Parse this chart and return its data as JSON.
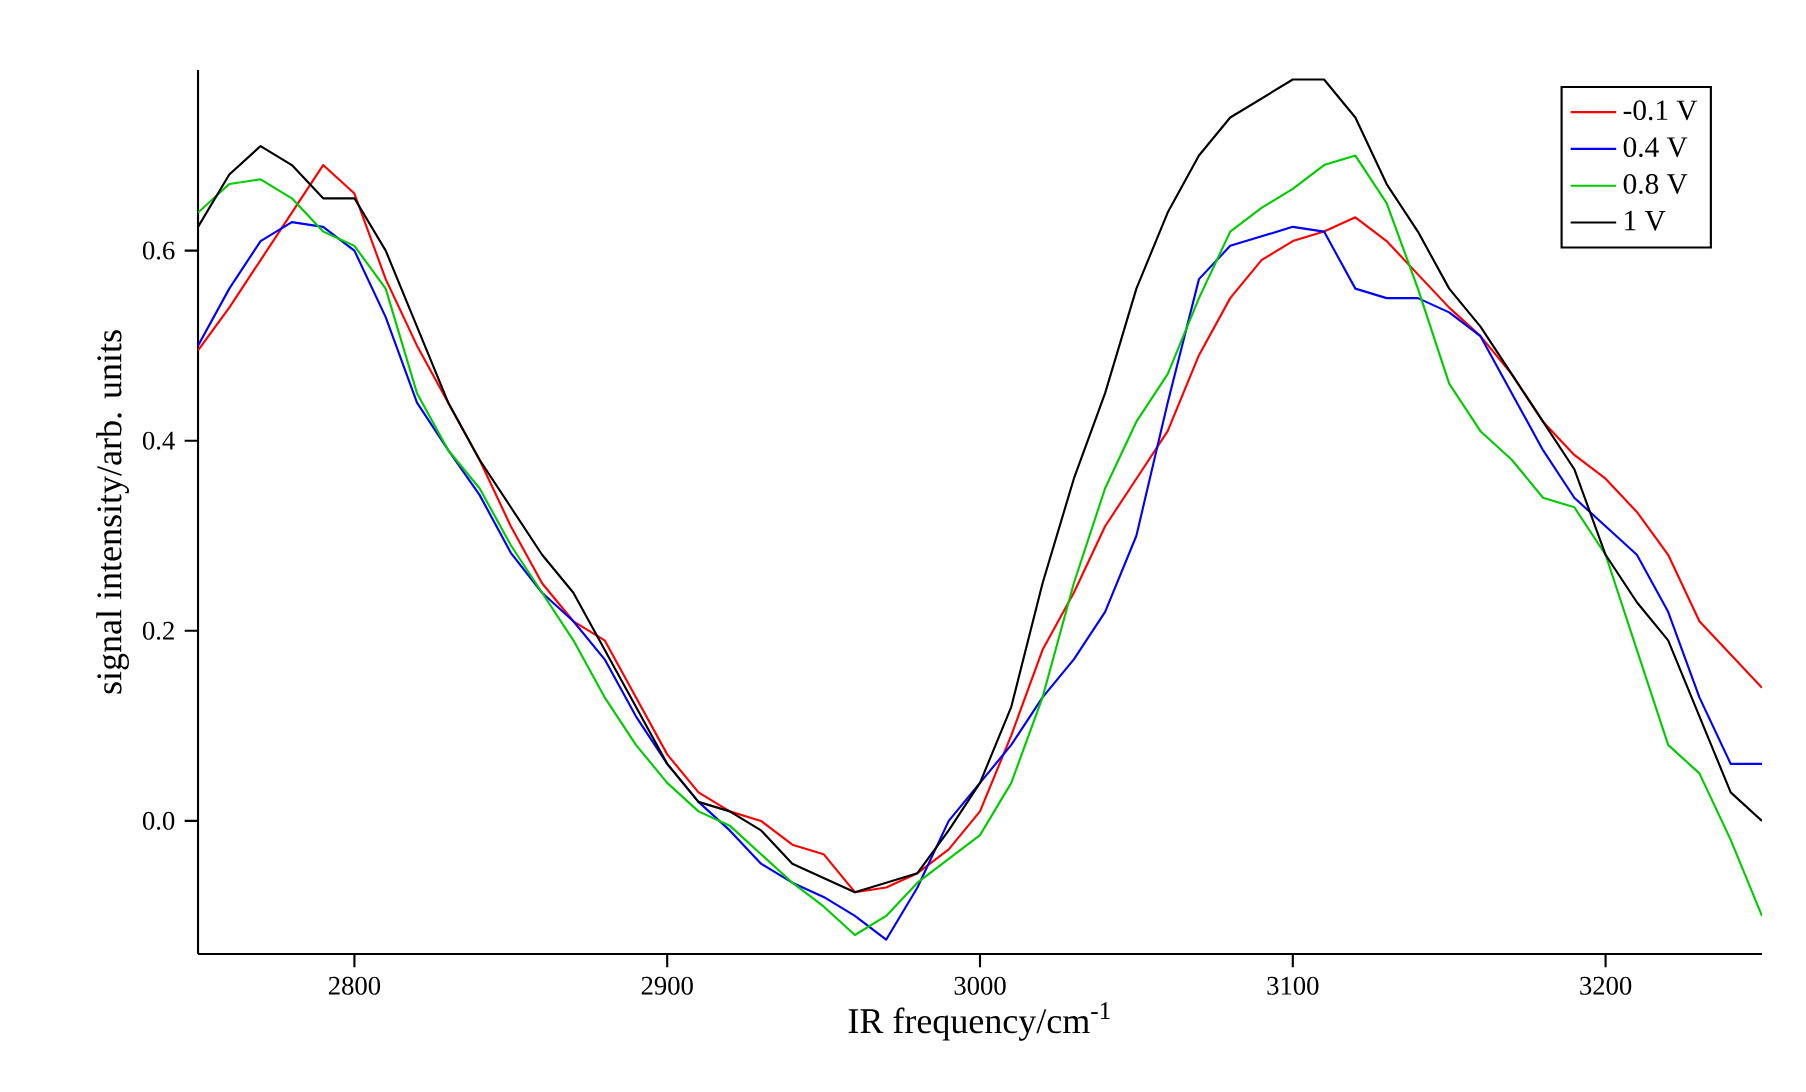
{
  "chart_data": {
    "type": "line",
    "xlabel": "IR frequency/cm$^{-1}$",
    "ylabel": "signal intensity/arb. units",
    "x": [
      2750,
      2760,
      2770,
      2780,
      2790,
      2800,
      2810,
      2820,
      2830,
      2840,
      2850,
      2860,
      2870,
      2880,
      2890,
      2900,
      2910,
      2920,
      2930,
      2940,
      2950,
      2960,
      2970,
      2980,
      2990,
      3000,
      3010,
      3020,
      3030,
      3040,
      3050,
      3060,
      3070,
      3080,
      3090,
      3100,
      3110,
      3120,
      3130,
      3140,
      3150,
      3160,
      3170,
      3180,
      3190,
      3200,
      3210,
      3220,
      3230,
      3240,
      3250
    ],
    "series": [
      {
        "name": "-0.1 V",
        "color": "#ff0000",
        "values": [
          0.495,
          0.54,
          0.59,
          0.64,
          0.69,
          0.66,
          0.57,
          0.5,
          0.44,
          0.38,
          0.31,
          0.25,
          0.21,
          0.19,
          0.13,
          0.07,
          0.03,
          0.01,
          0.0,
          -0.025,
          -0.035,
          -0.075,
          -0.07,
          -0.055,
          -0.03,
          0.01,
          0.09,
          0.18,
          0.24,
          0.31,
          0.36,
          0.41,
          0.49,
          0.55,
          0.59,
          0.61,
          0.62,
          0.635,
          0.61,
          0.575,
          0.54,
          0.51,
          0.47,
          0.42,
          0.385,
          0.36,
          0.325,
          0.28,
          0.21,
          0.175,
          0.14
        ]
      },
      {
        "name": "0.4 V",
        "color": "#0000ff",
        "values": [
          0.5,
          0.56,
          0.61,
          0.63,
          0.625,
          0.6,
          0.53,
          0.44,
          0.39,
          0.343,
          0.282,
          0.24,
          0.21,
          0.17,
          0.11,
          0.06,
          0.02,
          -0.01,
          -0.045,
          -0.065,
          -0.08,
          -0.1,
          -0.125,
          -0.07,
          0.0,
          0.04,
          0.08,
          0.13,
          0.17,
          0.22,
          0.3,
          0.44,
          0.57,
          0.605,
          0.615,
          0.625,
          0.62,
          0.56,
          0.55,
          0.55,
          0.535,
          0.51,
          0.45,
          0.39,
          0.34,
          0.31,
          0.28,
          0.22,
          0.13,
          0.06,
          0.06
        ]
      },
      {
        "name": "0.8 V",
        "color": "#00cc00",
        "values": [
          0.64,
          0.67,
          0.675,
          0.655,
          0.62,
          0.605,
          0.56,
          0.45,
          0.39,
          0.35,
          0.29,
          0.24,
          0.19,
          0.13,
          0.08,
          0.04,
          0.01,
          -0.005,
          -0.035,
          -0.065,
          -0.09,
          -0.12,
          -0.1,
          -0.065,
          -0.04,
          -0.015,
          0.04,
          0.13,
          0.25,
          0.35,
          0.42,
          0.47,
          0.55,
          0.62,
          0.645,
          0.665,
          0.69,
          0.7,
          0.65,
          0.56,
          0.46,
          0.41,
          0.38,
          0.34,
          0.33,
          0.28,
          0.18,
          0.08,
          0.05,
          -0.02,
          -0.1
        ]
      },
      {
        "name": "1 V",
        "color": "#000000",
        "values": [
          0.625,
          0.68,
          0.71,
          0.69,
          0.655,
          0.655,
          0.6,
          0.52,
          0.44,
          0.38,
          0.33,
          0.28,
          0.24,
          0.18,
          0.12,
          0.06,
          0.02,
          0.01,
          -0.01,
          -0.045,
          -0.06,
          -0.075,
          -0.065,
          -0.055,
          -0.01,
          0.04,
          0.12,
          0.25,
          0.36,
          0.45,
          0.56,
          0.64,
          0.7,
          0.74,
          0.76,
          0.78,
          0.78,
          0.74,
          0.67,
          0.62,
          0.56,
          0.52,
          0.47,
          0.42,
          0.37,
          0.28,
          0.23,
          0.19,
          0.11,
          0.03,
          0.0
        ]
      }
    ],
    "xlim": [
      2750,
      3250
    ],
    "ylim": [
      -0.14,
      0.79
    ],
    "xticks": [
      2800,
      2900,
      3000,
      3100,
      3200
    ],
    "yticks": [
      {
        "value": 0,
        "label": "0.0"
      },
      0.2,
      0.4,
      0.6
    ],
    "grid": false,
    "legend": "top right",
    "marker": "none",
    "line_style": "solid"
  }
}
